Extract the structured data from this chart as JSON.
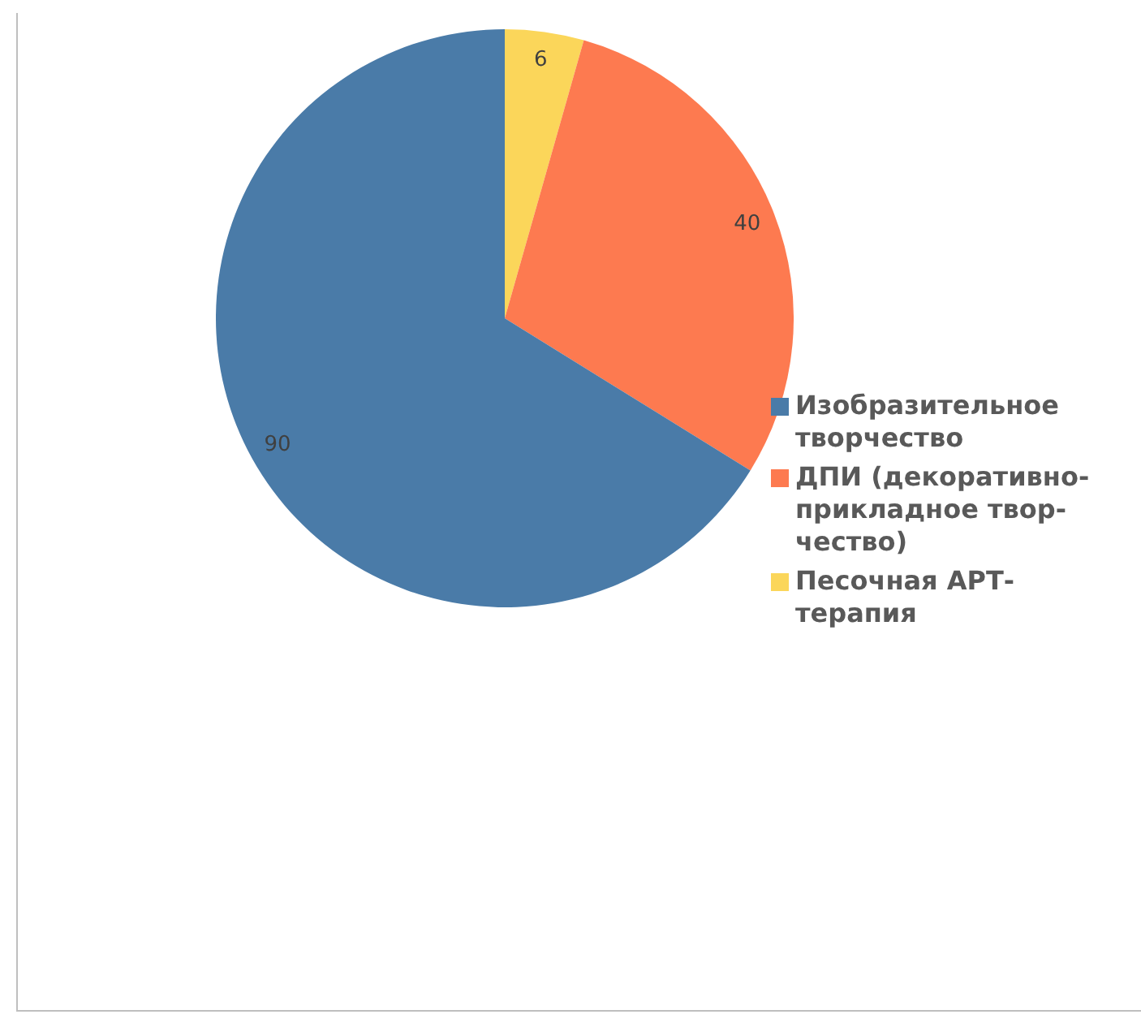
{
  "chart_data": {
    "type": "pie",
    "categories": [
      "Изобразительное творчество",
      "ДПИ (декоративно-прикладное твор-чество)",
      "Песочная АРТ-терапия"
    ],
    "values": [
      90,
      40,
      6
    ],
    "colors": [
      "#4a7ba8",
      "#fd7a50",
      "#fbd65a"
    ],
    "data_labels": true,
    "legend": "right"
  }
}
